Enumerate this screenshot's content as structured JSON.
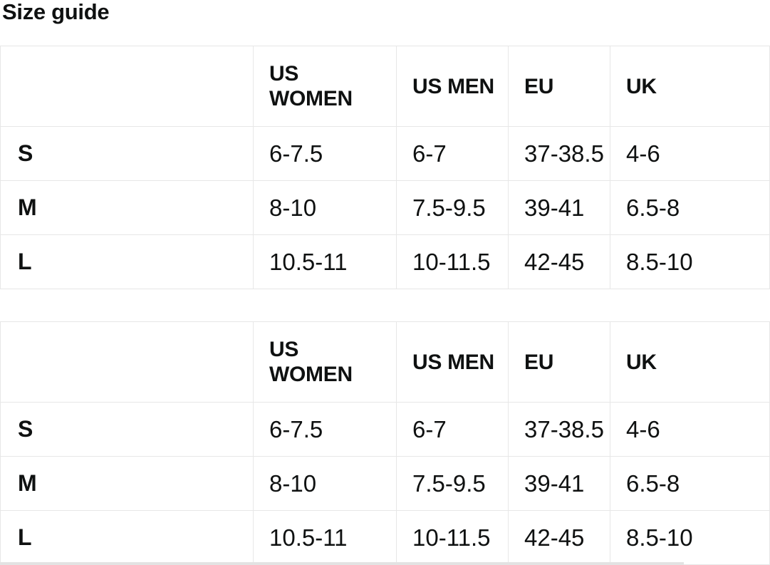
{
  "title": "Size guide",
  "tables": [
    {
      "columns": [
        "US WOMEN",
        "US MEN",
        "EU",
        "UK"
      ],
      "rows": [
        {
          "label": "S",
          "values": [
            "6-7.5",
            "6-7",
            "37-38.5",
            "4-6"
          ]
        },
        {
          "label": "M",
          "values": [
            "8-10",
            "7.5-9.5",
            "39-41",
            "6.5-8"
          ]
        },
        {
          "label": "L",
          "values": [
            "10.5-11",
            "10-11.5",
            "42-45",
            "8.5-10"
          ]
        }
      ]
    },
    {
      "columns": [
        "US WOMEN",
        "US MEN",
        "EU",
        "UK"
      ],
      "rows": [
        {
          "label": "S",
          "values": [
            "6-7.5",
            "6-7",
            "37-38.5",
            "4-6"
          ]
        },
        {
          "label": "M",
          "values": [
            "8-10",
            "7.5-9.5",
            "39-41",
            "6.5-8"
          ]
        },
        {
          "label": "L",
          "values": [
            "10.5-11",
            "10-11.5",
            "42-45",
            "8.5-10"
          ]
        }
      ]
    }
  ],
  "colors": {
    "text": "#0f1111",
    "border": "#e7e7e7",
    "divider": "#e3e3e3",
    "background": "#ffffff"
  }
}
